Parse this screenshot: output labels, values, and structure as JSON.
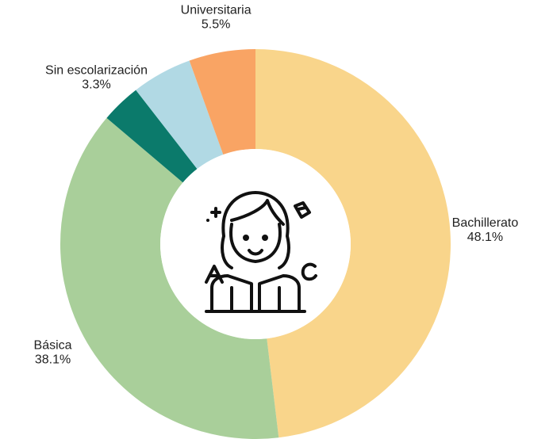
{
  "chart_data": {
    "type": "donut",
    "categories": [
      "Bachillerato",
      "Básica",
      "Sin escolarización",
      null,
      "Universitaria"
    ],
    "values": [
      48.1,
      38.1,
      3.3,
      5.0,
      5.5
    ],
    "value_labels": [
      "48.1%",
      "38.1%",
      "3.3%",
      null,
      "5.5%"
    ],
    "colors": [
      "#f9d58b",
      "#a9cf9a",
      "#0b7a6b",
      "#b1d9e4",
      "#f9a464"
    ]
  }
}
